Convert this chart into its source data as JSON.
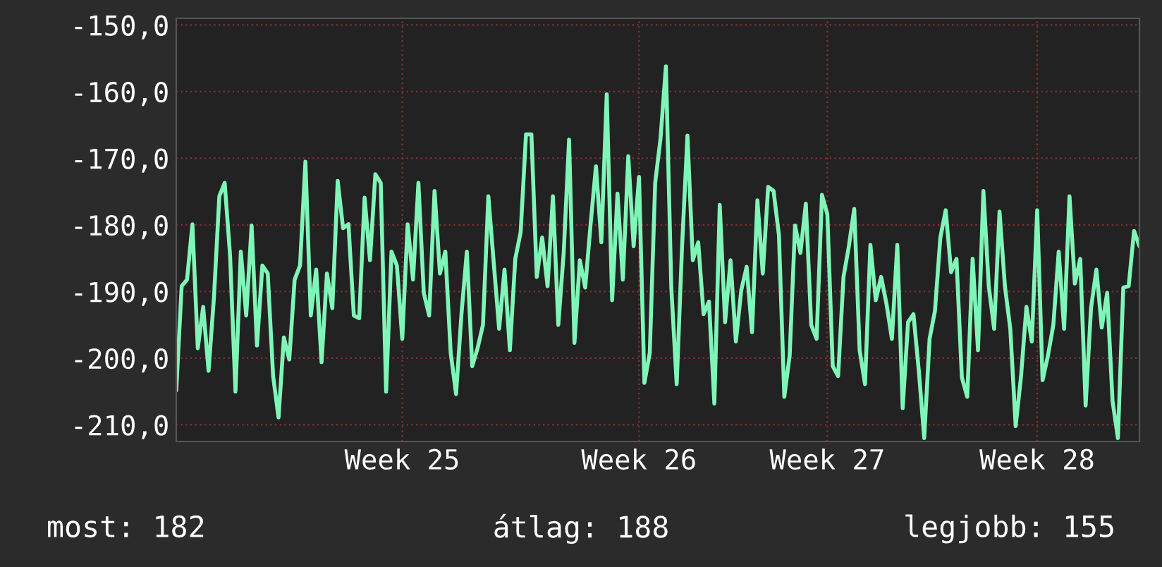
{
  "chart_data": {
    "type": "line",
    "categories": [
      null,
      null,
      null,
      null,
      null,
      null,
      null,
      null,
      null,
      null,
      null,
      null,
      null,
      null,
      null,
      null,
      null,
      null,
      null,
      null,
      null,
      null,
      null,
      null,
      null,
      null,
      null,
      null,
      null,
      null,
      null,
      null,
      null,
      null,
      null,
      null,
      null,
      null,
      null,
      null,
      null,
      null,
      "Week 25",
      null,
      null,
      null,
      null,
      null,
      null,
      null,
      null,
      null,
      null,
      null,
      null,
      null,
      null,
      null,
      null,
      null,
      null,
      null,
      null,
      null,
      null,
      null,
      null,
      null,
      null,
      null,
      null,
      null,
      null,
      null,
      null,
      null,
      null,
      null,
      null,
      null,
      null,
      null,
      null,
      null,
      null,
      null,
      "Week 26",
      null,
      null,
      null,
      null,
      null,
      null,
      null,
      null,
      null,
      null,
      null,
      null,
      null,
      null,
      null,
      null,
      null,
      null,
      null,
      null,
      null,
      null,
      null,
      null,
      null,
      null,
      null,
      null,
      null,
      null,
      null,
      null,
      null,
      null,
      "Week 27",
      null,
      null,
      null,
      null,
      null,
      null,
      null,
      null,
      null,
      null,
      null,
      null,
      null,
      null,
      null,
      null,
      null,
      null,
      null,
      null,
      null,
      null,
      null,
      null,
      null,
      null,
      null,
      null,
      null,
      null,
      null,
      null,
      null,
      null,
      null,
      null,
      null,
      null,
      "Week 28",
      null,
      null,
      null,
      null,
      null,
      null,
      null,
      null,
      null,
      null,
      null,
      null,
      null,
      null,
      null,
      null,
      null,
      null,
      null
    ],
    "series": [
      {
        "color": "#80f5b8",
        "values": [
          -204.8,
          -189.2,
          -188.2,
          -179.9,
          -198.5,
          -192.3,
          -201.9,
          -190.9,
          -175.7,
          -173.7,
          -184.6,
          -205.0,
          -184.0,
          -193.6,
          -180.1,
          -198.1,
          -186.1,
          -187.3,
          -202.7,
          -208.9,
          -196.9,
          -200.2,
          -188.2,
          -186.1,
          -170.5,
          -193.6,
          -186.7,
          -200.6,
          -187.3,
          -192.5,
          -173.4,
          -180.5,
          -179.9,
          -193.6,
          -194.0,
          -175.9,
          -185.3,
          -172.4,
          -173.7,
          -205.0,
          -184.0,
          -186.1,
          -197.1,
          -179.9,
          -188.2,
          -173.7,
          -190.2,
          -193.6,
          -174.9,
          -187.3,
          -184.0,
          -199.2,
          -205.4,
          -193.4,
          -184.0,
          -201.2,
          -198.5,
          -195.0,
          -175.7,
          -185.7,
          -195.6,
          -186.7,
          -198.8,
          -185.1,
          -181.1,
          -166.4,
          -166.4,
          -187.8,
          -181.9,
          -189.2,
          -175.7,
          -195.0,
          -184.2,
          -167.2,
          -197.7,
          -185.3,
          -189.4,
          -179.9,
          -171.2,
          -182.6,
          -160.4,
          -191.3,
          -175.3,
          -188.2,
          -169.7,
          -183.2,
          -172.8,
          -203.7,
          -199.2,
          -173.7,
          -167.0,
          -156.2,
          -189.4,
          -203.9,
          -183.2,
          -166.6,
          -185.3,
          -182.6,
          -193.4,
          -191.5,
          -206.8,
          -177.0,
          -194.6,
          -185.3,
          -197.5,
          -189.8,
          -186.3,
          -196.1,
          -176.3,
          -187.3,
          -174.3,
          -174.9,
          -181.5,
          -205.8,
          -199.6,
          -180.1,
          -184.2,
          -176.8,
          -195.0,
          -197.1,
          -175.5,
          -178.4,
          -201.2,
          -202.7,
          -187.8,
          -183.2,
          -177.6,
          -198.8,
          -203.9,
          -183.0,
          -191.3,
          -187.8,
          -191.9,
          -197.1,
          -183.0,
          -207.5,
          -194.6,
          -193.4,
          -201.9,
          -212.0,
          -197.1,
          -192.9,
          -181.9,
          -177.8,
          -187.1,
          -185.1,
          -202.9,
          -205.8,
          -185.1,
          -198.8,
          -174.9,
          -189.2,
          -195.6,
          -178.0,
          -189.2,
          -195.6,
          -210.2,
          -202.7,
          -192.3,
          -197.5,
          -177.8,
          -203.3,
          -199.6,
          -195.0,
          -184.0,
          -195.6,
          -175.7,
          -188.8,
          -185.1,
          -207.1,
          -192.5,
          -186.7,
          -195.4,
          -190.2,
          -206.4,
          -212.0,
          -189.4,
          -189.2,
          -180.9,
          -183.2
        ]
      }
    ],
    "ylim": [
      -212.5,
      -149
    ],
    "yticks": [
      {
        "value": -150,
        "label": "-150,0"
      },
      {
        "value": -160,
        "label": "-160,0"
      },
      {
        "value": -170,
        "label": "-170,0"
      },
      {
        "value": -180,
        "label": "-180,0"
      },
      {
        "value": -190,
        "label": "-190,0"
      },
      {
        "value": -200,
        "label": "-200,0"
      },
      {
        "value": -210,
        "label": "-210,0"
      }
    ],
    "grid": true,
    "annotations": [
      "most: 182",
      "átlag: 188",
      "legjobb: 155"
    ]
  }
}
